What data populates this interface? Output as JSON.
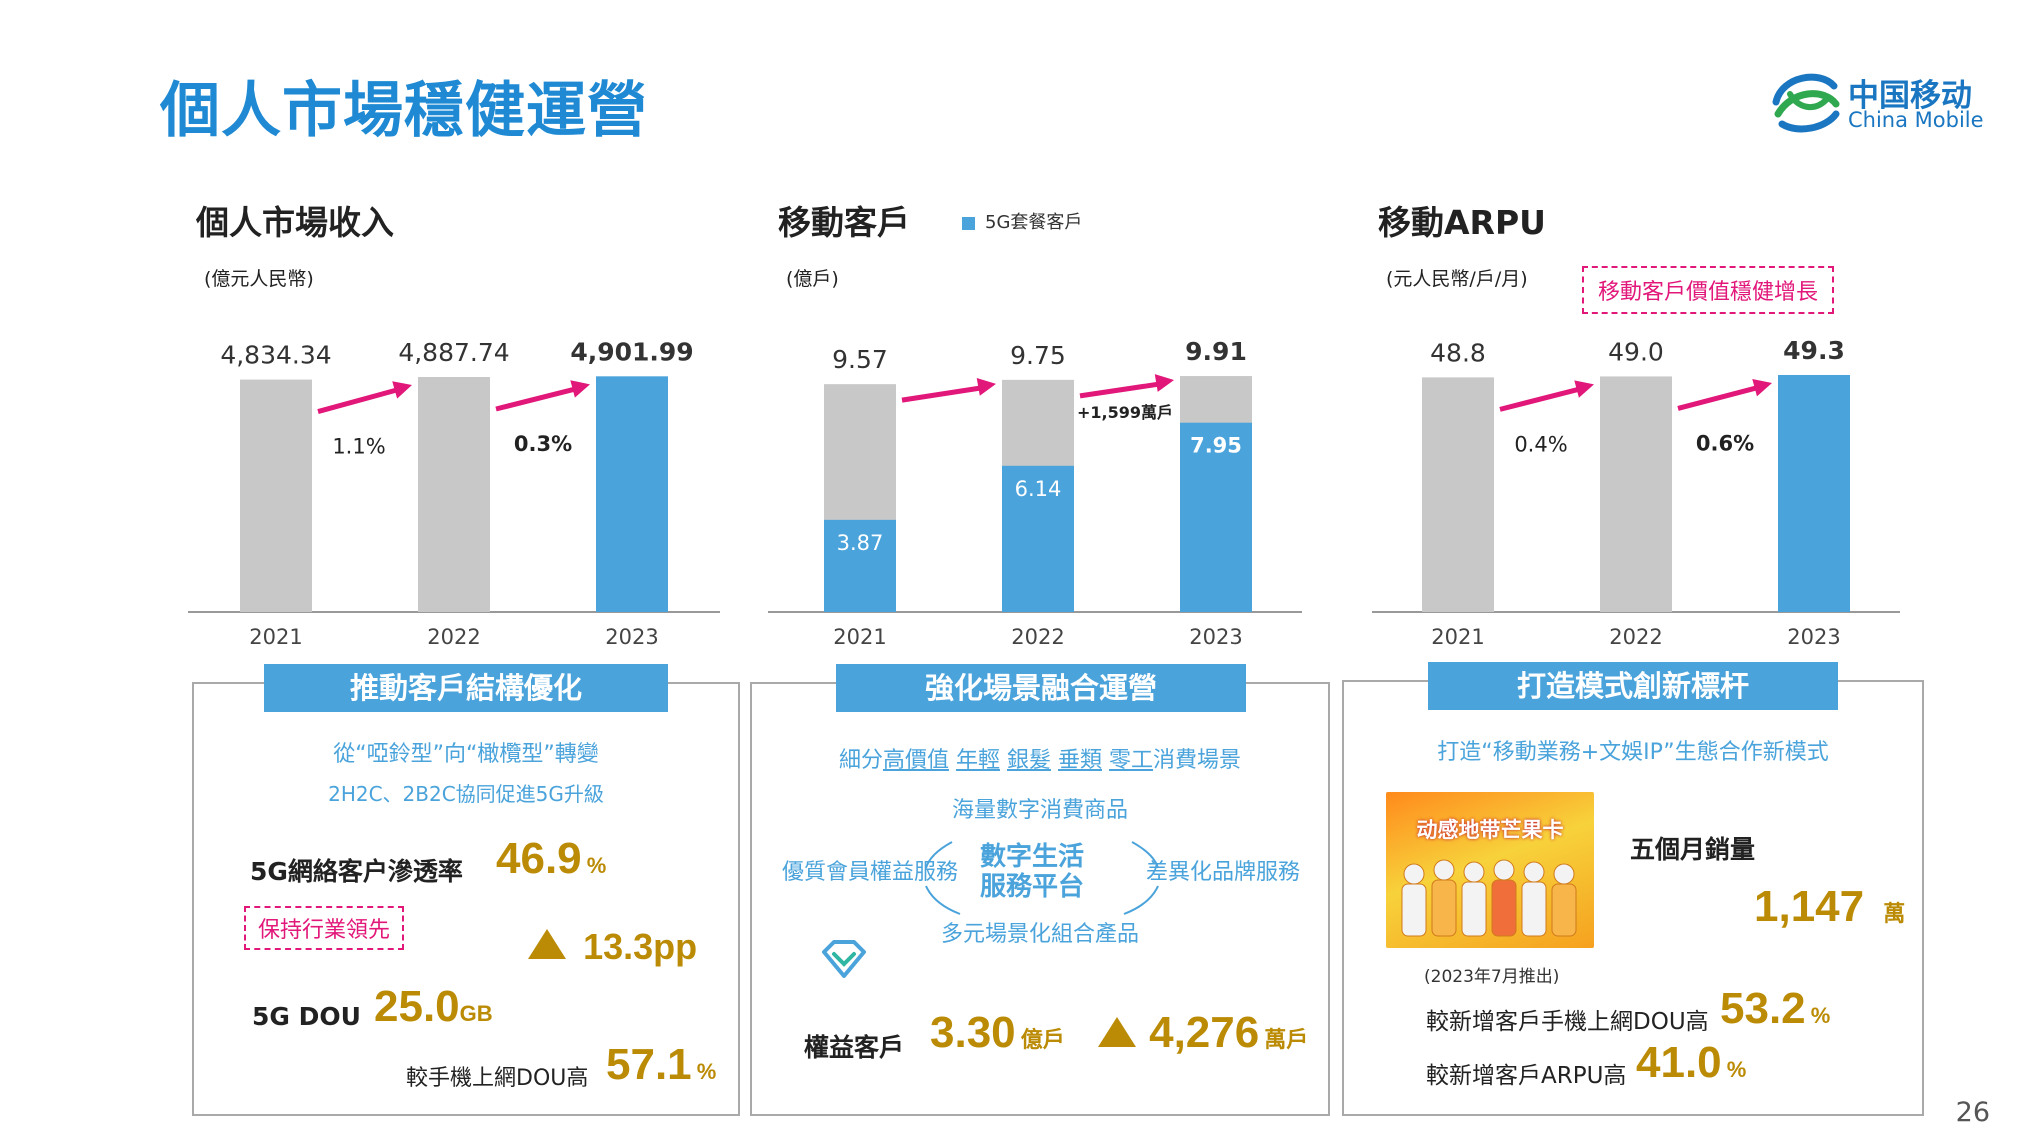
{
  "page": {
    "title": "個人市場穩健運營",
    "page_number": "26",
    "logo": {
      "cn": "中国移动",
      "en": "China Mobile"
    }
  },
  "charts": {
    "revenue": {
      "title": "個人市場收入",
      "unit": "(億元人民幣)"
    },
    "customers": {
      "title": "移動客戶",
      "unit": "(億戶)",
      "legend": "5G套餐客戶",
      "note": "+1,599萬戶"
    },
    "arpu": {
      "title": "移動ARPU",
      "unit": "(元人民幣/戶/月)",
      "callout": "移動客戶價值穩健增長"
    }
  },
  "chart_data": [
    {
      "type": "bar",
      "title": "個人市場收入",
      "categories": [
        "2021",
        "2022",
        "2023"
      ],
      "values": [
        4834.34,
        4887.74,
        4901.99
      ],
      "value_labels": [
        "4,834.34",
        "4,887.74",
        "4,901.99"
      ],
      "growth": [
        "1.1%",
        "0.3%"
      ],
      "ylim": [
        0,
        5200
      ]
    },
    {
      "type": "bar",
      "title": "移動客戶",
      "categories": [
        "2021",
        "2022",
        "2023"
      ],
      "series": [
        {
          "name": "5G套餐客戶",
          "values": [
            3.87,
            6.14,
            7.95
          ]
        },
        {
          "values": [
            9.57,
            9.75,
            9.91
          ]
        }
      ],
      "total_labels": [
        "9.57",
        "9.75",
        "9.91"
      ],
      "fiveg_labels": [
        "3.87",
        "6.14",
        "7.95"
      ],
      "ylim": [
        0,
        10.5
      ]
    },
    {
      "type": "bar",
      "title": "移動ARPU",
      "categories": [
        "2021",
        "2022",
        "2023"
      ],
      "values": [
        48.8,
        49.0,
        49.3
      ],
      "value_labels": [
        "48.8",
        "49.0",
        "49.3"
      ],
      "growth": [
        "0.4%",
        "0.6%"
      ],
      "ylim": [
        0,
        52
      ]
    }
  ],
  "panels": {
    "left": {
      "header": "推動客戶結構優化",
      "line1": "從“啞鈴型”向“橄欖型”轉變",
      "line2": "2H2C、2B2C協同促進5G升級",
      "penetration_label": "5G網絡客户滲透率",
      "penetration_value": "46.9",
      "penetration_unit": "%",
      "leading_tag": "保持行業領先",
      "increase_value": "13.3pp",
      "dou_label": "5G DOU",
      "dou_value": "25.0",
      "dou_unit": "GB",
      "dou_higher_label": "較手機上網DOU高",
      "dou_higher_value": "57.1",
      "dou_higher_unit": "%"
    },
    "middle": {
      "header": "強化場景融合運營",
      "segments_prefix": "細分",
      "segments": [
        "高價值",
        "年輕",
        "銀髮",
        "垂類",
        "零工"
      ],
      "segments_suffix": "消費場景",
      "top_text": "海量數字消費商品",
      "left_text": "優質會員權益服務",
      "center_text_1": "數字生活",
      "center_text_2": "服務平台",
      "right_text": "差異化品牌服務",
      "bottom_text": "多元場景化組合產品",
      "rights_label": "權益客戶",
      "rights_value": "3.30",
      "rights_unit": "億戶",
      "rights_increase": "4,276",
      "rights_increase_unit": "萬戶"
    },
    "right": {
      "header": "打造模式創新標杆",
      "line1": "打造“移動業務+文娛IP”生態合作新模式",
      "promo_title": "动感地带芒果卡",
      "sales_label": "五個月銷量",
      "sales_value": "1,147",
      "sales_unit": "萬",
      "launch_note": "(2023年7月推出)",
      "dou_label": "較新增客戶手機上網DOU高",
      "dou_value": "53.2",
      "dou_unit": "%",
      "arpu_label": "較新增客戶ARPU高",
      "arpu_value": "41.0",
      "arpu_unit": "%"
    }
  },
  "colors": {
    "title_blue": "#1f8ad3",
    "bar_blue": "#4aa3db",
    "bar_gray": "#c8c8c8",
    "magenta": "#e2177a",
    "gold": "#bb8b06"
  }
}
